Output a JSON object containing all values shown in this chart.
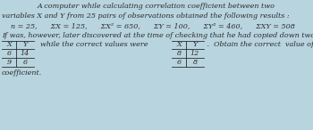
{
  "bg_color": "#b8d4de",
  "line1": "A computer while calculating correlation coefficient between two",
  "line2": "variables X and Y from 25 pairs of observations obtained the following results :",
  "line3": "    n = 25,      ΣX = 125,      ΣX² = 650,      ΣY = 100,      ΣY² = 460,      ΣXY = 508",
  "line4": "If was, however, later discovered at the time of checking that he had copied down two pairs as",
  "middle_text": "  while the correct values were",
  "right_text": " .  Obtain the correct  value of correlation",
  "last_line": "coefficient.",
  "table_wrong_header": [
    "X",
    "Y"
  ],
  "table_wrong_data": [
    [
      "6",
      "14"
    ],
    [
      "9",
      "6"
    ]
  ],
  "table_correct_header": [
    "X",
    "Y"
  ],
  "table_correct_data": [
    [
      "8",
      "12"
    ],
    [
      "6",
      "8"
    ]
  ],
  "fs": 5.8,
  "fs_table": 5.8,
  "text_color": "#2b2b2b"
}
